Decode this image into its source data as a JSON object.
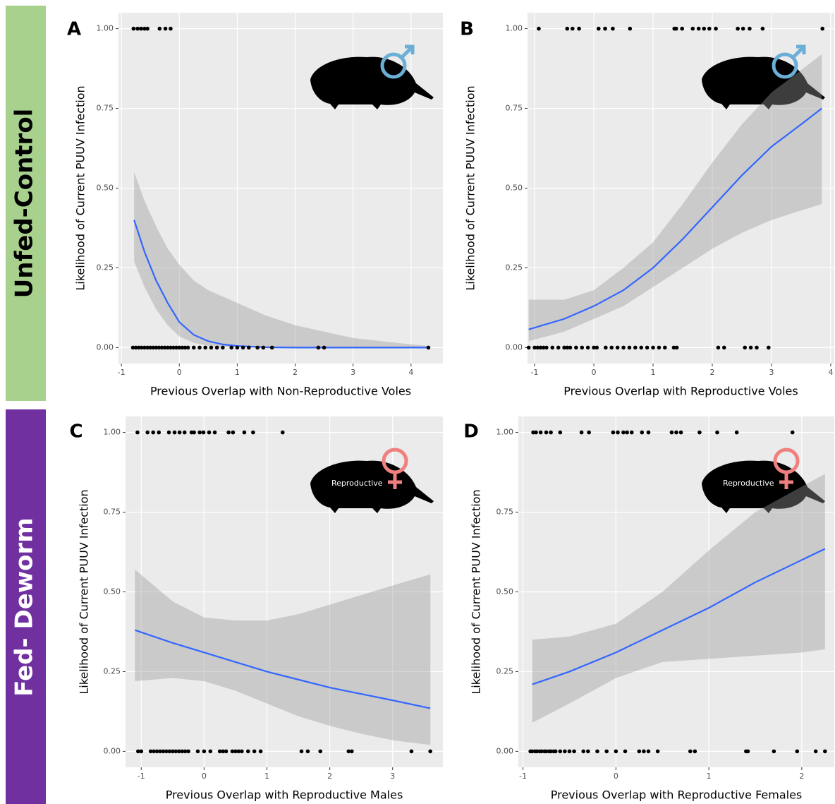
{
  "row_labels": [
    "Unfed-Control",
    "Fed- Deworm"
  ],
  "chart_data": [
    {
      "type": "line",
      "title": "A",
      "x_label": "Previous Overlap with Non-Reproductive Voles",
      "y_label": "Likelihood of Current PUUV Infection",
      "xlim": [
        -1.05,
        4.55
      ],
      "xticks": [
        -1,
        0,
        1,
        2,
        3,
        4
      ],
      "ylim": [
        -0.05,
        1.05
      ],
      "yticks": [
        {
          "value": 0,
          "label": "0.00"
        },
        {
          "value": 0.25,
          "label": "0.25"
        },
        {
          "value": 0.5,
          "label": "0.50"
        },
        {
          "value": 0.75,
          "label": "0.75"
        },
        {
          "value": 1,
          "label": "1.00"
        }
      ],
      "grid": true,
      "point_color": "#000000",
      "line_color": "#3366ff",
      "ribbon_color": "#999999",
      "points": {
        "x": [
          -0.79,
          -0.72,
          -0.66,
          -0.6,
          -0.55,
          -0.34,
          -0.24,
          -0.15,
          -0.8,
          -0.75,
          -0.7,
          -0.65,
          -0.6,
          -0.55,
          -0.5,
          -0.45,
          -0.4,
          -0.35,
          -0.3,
          -0.25,
          -0.2,
          -0.15,
          -0.1,
          -0.05,
          0,
          0.05,
          0.1,
          0.15,
          0.25,
          0.35,
          0.45,
          0.55,
          0.65,
          0.75,
          0.9,
          1.0,
          1.1,
          1.2,
          1.35,
          1.45,
          1.6,
          2.4,
          2.5,
          4.3
        ],
        "y": [
          1,
          1,
          1,
          1,
          1,
          1,
          1,
          1,
          0,
          0,
          0,
          0,
          0,
          0,
          0,
          0,
          0,
          0,
          0,
          0,
          0,
          0,
          0,
          0,
          0,
          0,
          0,
          0,
          0,
          0,
          0,
          0,
          0,
          0,
          0,
          0,
          0,
          0,
          0,
          0,
          0,
          0,
          0,
          0
        ]
      },
      "fit": {
        "x": [
          -0.78,
          -0.6,
          -0.4,
          -0.2,
          0,
          0.25,
          0.5,
          0.75,
          1,
          1.5,
          2,
          2.5,
          3,
          3.5,
          4,
          4.3
        ],
        "values": [
          0.4,
          0.3,
          0.21,
          0.14,
          0.08,
          0.04,
          0.02,
          0.01,
          0.005,
          0.001,
          0,
          0,
          0,
          0,
          0,
          0
        ],
        "lower": [
          0.27,
          0.19,
          0.12,
          0.07,
          0.035,
          0.015,
          0.006,
          0.002,
          0.001,
          0,
          0,
          0,
          0,
          0,
          0,
          0
        ],
        "upper": [
          0.55,
          0.46,
          0.38,
          0.31,
          0.26,
          0.21,
          0.18,
          0.16,
          0.14,
          0.1,
          0.07,
          0.05,
          0.03,
          0.02,
          0.01,
          0.005
        ]
      }
    },
    {
      "type": "line",
      "title": "B",
      "x_label": "Previous Overlap with Reproductive Voles",
      "y_label": "Likelihood of Current PUUV Infection",
      "xlim": [
        -1.12,
        4.06
      ],
      "xticks": [
        -1,
        0,
        1,
        2,
        3,
        4
      ],
      "ylim": [
        -0.05,
        1.05
      ],
      "yticks": [
        {
          "value": 0,
          "label": "0.00"
        },
        {
          "value": 0.25,
          "label": "0.25"
        },
        {
          "value": 0.5,
          "label": "0.50"
        },
        {
          "value": 0.75,
          "label": "0.75"
        },
        {
          "value": 1,
          "label": "1.00"
        }
      ],
      "grid": true,
      "point_color": "#000000",
      "line_color": "#3366ff",
      "ribbon_color": "#999999",
      "points": {
        "x": [
          -0.93,
          -0.45,
          -0.36,
          -0.25,
          0.08,
          0.19,
          0.32,
          0.61,
          1.36,
          1.39,
          1.49,
          1.67,
          1.77,
          1.86,
          1.95,
          2.06,
          2.43,
          2.52,
          2.63,
          2.85,
          3.86,
          -1.1,
          -1.0,
          -0.95,
          -0.9,
          -0.85,
          -0.8,
          -0.7,
          -0.6,
          -0.5,
          -0.45,
          -0.4,
          -0.3,
          -0.2,
          -0.1,
          0,
          0.05,
          0.2,
          0.3,
          0.4,
          0.5,
          0.6,
          0.7,
          0.8,
          0.9,
          1.0,
          1.1,
          1.2,
          1.35,
          1.4,
          2.1,
          2.2,
          2.55,
          2.65,
          2.75,
          2.95
        ],
        "y": [
          1,
          1,
          1,
          1,
          1,
          1,
          1,
          1,
          1,
          1,
          1,
          1,
          1,
          1,
          1,
          1,
          1,
          1,
          1,
          1,
          1,
          0,
          0,
          0,
          0,
          0,
          0,
          0,
          0,
          0,
          0,
          0,
          0,
          0,
          0,
          0,
          0,
          0,
          0,
          0,
          0,
          0,
          0,
          0,
          0,
          0,
          0,
          0,
          0,
          0,
          0,
          0,
          0,
          0,
          0,
          0
        ]
      },
      "fit": {
        "x": [
          -1.1,
          -0.5,
          0,
          0.5,
          1,
          1.5,
          2,
          2.5,
          3,
          3.5,
          3.85
        ],
        "values": [
          0.057,
          0.09,
          0.13,
          0.18,
          0.25,
          0.34,
          0.44,
          0.54,
          0.63,
          0.7,
          0.75
        ],
        "lower": [
          0.02,
          0.05,
          0.09,
          0.13,
          0.19,
          0.25,
          0.31,
          0.36,
          0.4,
          0.43,
          0.45
        ],
        "upper": [
          0.15,
          0.15,
          0.18,
          0.25,
          0.33,
          0.45,
          0.58,
          0.7,
          0.8,
          0.87,
          0.92
        ]
      }
    },
    {
      "type": "line",
      "title": "C",
      "x_label": "Previous Overlap with Reproductive Males",
      "y_label": "Likelihood of Current PUUV Infection",
      "icon_label": "Reproductive",
      "xlim": [
        -1.25,
        3.8
      ],
      "xticks": [
        -1,
        0,
        1,
        2,
        3
      ],
      "ylim": [
        -0.05,
        1.05
      ],
      "yticks": [
        {
          "value": 0,
          "label": "0.00"
        },
        {
          "value": 0.25,
          "label": "0.25"
        },
        {
          "value": 0.5,
          "label": "0.50"
        },
        {
          "value": 0.75,
          "label": "0.75"
        },
        {
          "value": 1,
          "label": "1.00"
        }
      ],
      "grid": true,
      "point_color": "#000000",
      "line_color": "#3366ff",
      "ribbon_color": "#999999",
      "points": {
        "x": [
          -1.06,
          -0.9,
          -0.81,
          -0.72,
          -0.56,
          -0.47,
          -0.39,
          -0.31,
          -0.2,
          -0.16,
          -0.07,
          -0.01,
          0.08,
          0.17,
          0.39,
          0.46,
          0.64,
          0.78,
          1.25,
          -1.05,
          -1.0,
          -0.85,
          -0.8,
          -0.75,
          -0.7,
          -0.65,
          -0.6,
          -0.55,
          -0.5,
          -0.45,
          -0.4,
          -0.35,
          -0.3,
          -0.25,
          -0.1,
          0,
          0.1,
          0.25,
          0.3,
          0.35,
          0.45,
          0.5,
          0.55,
          0.6,
          0.7,
          0.8,
          0.9,
          1.55,
          1.65,
          1.85,
          2.3,
          2.35,
          3.3,
          3.6
        ],
        "y": [
          1,
          1,
          1,
          1,
          1,
          1,
          1,
          1,
          1,
          1,
          1,
          1,
          1,
          1,
          1,
          1,
          1,
          1,
          1,
          0,
          0,
          0,
          0,
          0,
          0,
          0,
          0,
          0,
          0,
          0,
          0,
          0,
          0,
          0,
          0,
          0,
          0,
          0,
          0,
          0,
          0,
          0,
          0,
          0,
          0,
          0,
          0,
          0,
          0,
          0,
          0,
          0,
          0,
          0
        ]
      },
      "fit": {
        "x": [
          -1.1,
          -0.5,
          0,
          0.5,
          1,
          1.5,
          2,
          2.5,
          3,
          3.6
        ],
        "values": [
          0.38,
          0.34,
          0.31,
          0.28,
          0.25,
          0.225,
          0.2,
          0.18,
          0.16,
          0.135
        ],
        "lower": [
          0.22,
          0.23,
          0.22,
          0.19,
          0.15,
          0.11,
          0.08,
          0.055,
          0.035,
          0.02
        ],
        "upper": [
          0.57,
          0.47,
          0.42,
          0.41,
          0.41,
          0.43,
          0.46,
          0.49,
          0.52,
          0.555
        ]
      }
    },
    {
      "type": "line",
      "title": "D",
      "x_label": "Previous Overlap with Reproductive Females",
      "y_label": "Likelihood of Current PUUV Infection",
      "icon_label": "Reproductive",
      "xlim": [
        -1.05,
        2.35
      ],
      "xticks": [
        -1,
        0,
        1,
        2
      ],
      "ylim": [
        -0.05,
        1.05
      ],
      "yticks": [
        {
          "value": 0,
          "label": "0.00"
        },
        {
          "value": 0.25,
          "label": "0.25"
        },
        {
          "value": 0.5,
          "label": "0.50"
        },
        {
          "value": 0.75,
          "label": "0.75"
        },
        {
          "value": 1,
          "label": "1.00"
        }
      ],
      "grid": true,
      "point_color": "#000000",
      "line_color": "#3366ff",
      "ribbon_color": "#999999",
      "points": {
        "x": [
          -0.89,
          -0.86,
          -0.81,
          -0.75,
          -0.7,
          -0.6,
          -0.37,
          -0.29,
          -0.03,
          0.02,
          0.08,
          0.12,
          0.17,
          0.28,
          0.35,
          0.6,
          0.65,
          0.7,
          0.9,
          1.09,
          1.3,
          1.9,
          -0.92,
          -0.9,
          -0.87,
          -0.85,
          -0.82,
          -0.8,
          -0.77,
          -0.75,
          -0.72,
          -0.7,
          -0.67,
          -0.65,
          -0.6,
          -0.55,
          -0.5,
          -0.45,
          -0.35,
          -0.3,
          -0.2,
          -0.1,
          0,
          0.1,
          0.25,
          0.3,
          0.35,
          0.45,
          0.8,
          0.85,
          1.4,
          1.42,
          1.7,
          1.95,
          2.15,
          2.25
        ],
        "y": [
          1,
          1,
          1,
          1,
          1,
          1,
          1,
          1,
          1,
          1,
          1,
          1,
          1,
          1,
          1,
          1,
          1,
          1,
          1,
          1,
          1,
          1,
          0,
          0,
          0,
          0,
          0,
          0,
          0,
          0,
          0,
          0,
          0,
          0,
          0,
          0,
          0,
          0,
          0,
          0,
          0,
          0,
          0,
          0,
          0,
          0,
          0,
          0,
          0,
          0,
          0,
          0,
          0,
          0,
          0,
          0
        ]
      },
      "fit": {
        "x": [
          -0.9,
          -0.5,
          0,
          0.5,
          1,
          1.5,
          2,
          2.25
        ],
        "values": [
          0.21,
          0.25,
          0.31,
          0.38,
          0.45,
          0.53,
          0.6,
          0.635
        ],
        "lower": [
          0.09,
          0.15,
          0.23,
          0.28,
          0.29,
          0.3,
          0.31,
          0.32
        ],
        "upper": [
          0.35,
          0.36,
          0.4,
          0.5,
          0.63,
          0.75,
          0.83,
          0.87
        ]
      }
    }
  ]
}
